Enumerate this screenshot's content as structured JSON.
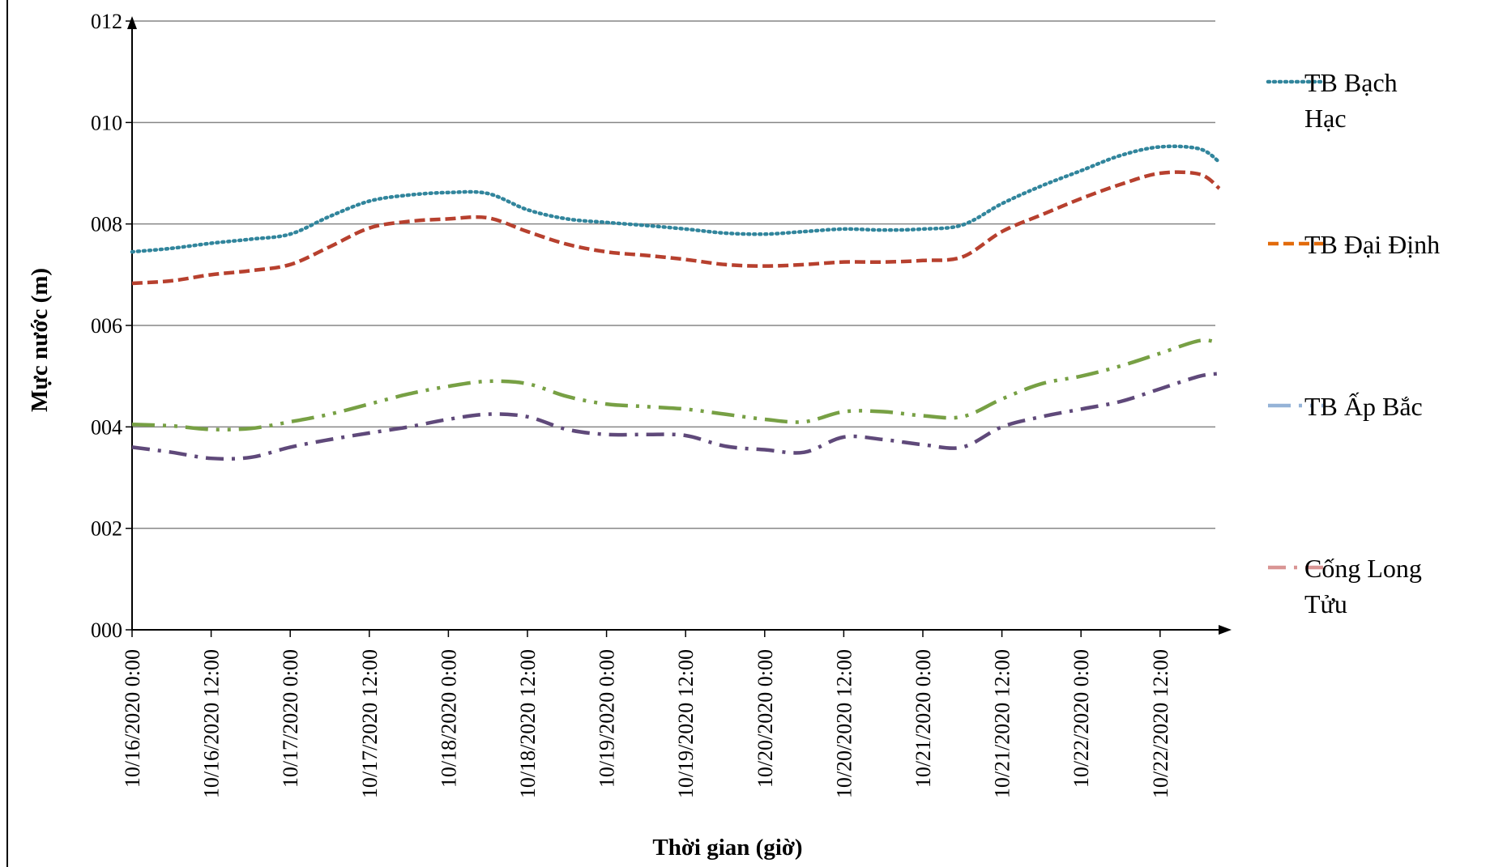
{
  "chart_data": {
    "type": "line",
    "title": "",
    "xlabel": "Thời gian (giờ)",
    "ylabel": "Mực nước (m)",
    "ylim": [
      0,
      12
    ],
    "yticks": [
      "000",
      "002",
      "004",
      "006",
      "008",
      "010",
      "012"
    ],
    "xlim": [
      "10/16/2020 0:00",
      "10/22/2020 21:00"
    ],
    "categories": [
      "10/16/2020 0:00",
      "10/16/2020 12:00",
      "10/17/2020 0:00",
      "10/17/2020 12:00",
      "10/18/2020 0:00",
      "10/18/2020 12:00",
      "10/19/2020 0:00",
      "10/19/2020 12:00",
      "10/20/2020 0:00",
      "10/20/2020 12:00",
      "10/21/2020 0:00",
      "10/21/2020 12:00",
      "10/22/2020 0:00",
      "10/22/2020 12:00"
    ],
    "grid": true,
    "legend_position": "right",
    "series": [
      {
        "name": "TB Bạch Hạc",
        "legend_color": "#31859c",
        "color": "#31859c",
        "dash": "dot",
        "x": [
          "10/16/2020 0:00",
          "10/16/2020 6:00",
          "10/16/2020 12:00",
          "10/16/2020 18:00",
          "10/17/2020 0:00",
          "10/17/2020 6:00",
          "10/17/2020 12:00",
          "10/17/2020 18:00",
          "10/18/2020 0:00",
          "10/18/2020 6:00",
          "10/18/2020 12:00",
          "10/18/2020 18:00",
          "10/19/2020 0:00",
          "10/19/2020 6:00",
          "10/19/2020 12:00",
          "10/19/2020 18:00",
          "10/20/2020 0:00",
          "10/20/2020 6:00",
          "10/20/2020 12:00",
          "10/20/2020 18:00",
          "10/21/2020 0:00",
          "10/21/2020 6:00",
          "10/21/2020 12:00",
          "10/21/2020 18:00",
          "10/22/2020 0:00",
          "10/22/2020 6:00",
          "10/22/2020 12:00",
          "10/22/2020 18:00",
          "10/22/2020 21:00"
        ],
        "values": [
          7.45,
          7.52,
          7.62,
          7.7,
          7.8,
          8.15,
          8.45,
          8.57,
          8.62,
          8.6,
          8.28,
          8.1,
          8.03,
          7.97,
          7.9,
          7.82,
          7.8,
          7.85,
          7.9,
          7.88,
          7.9,
          7.98,
          8.4,
          8.75,
          9.05,
          9.35,
          9.52,
          9.48,
          9.22
        ]
      },
      {
        "name": "TB Đại Định",
        "legend_color": "#e26b0a",
        "color": "#b7402e",
        "dash": "dash",
        "x": [
          "10/16/2020 0:00",
          "10/16/2020 6:00",
          "10/16/2020 12:00",
          "10/16/2020 18:00",
          "10/17/2020 0:00",
          "10/17/2020 6:00",
          "10/17/2020 12:00",
          "10/17/2020 18:00",
          "10/18/2020 0:00",
          "10/18/2020 6:00",
          "10/18/2020 12:00",
          "10/18/2020 18:00",
          "10/19/2020 0:00",
          "10/19/2020 6:00",
          "10/19/2020 12:00",
          "10/19/2020 18:00",
          "10/20/2020 0:00",
          "10/20/2020 6:00",
          "10/20/2020 12:00",
          "10/20/2020 18:00",
          "10/21/2020 0:00",
          "10/21/2020 6:00",
          "10/21/2020 12:00",
          "10/21/2020 18:00",
          "10/22/2020 0:00",
          "10/22/2020 6:00",
          "10/22/2020 12:00",
          "10/22/2020 18:00",
          "10/22/2020 21:00"
        ],
        "values": [
          6.83,
          6.88,
          7.0,
          7.08,
          7.2,
          7.55,
          7.92,
          8.05,
          8.1,
          8.12,
          7.85,
          7.6,
          7.45,
          7.38,
          7.3,
          7.2,
          7.17,
          7.2,
          7.25,
          7.25,
          7.28,
          7.35,
          7.85,
          8.18,
          8.5,
          8.78,
          9.0,
          8.98,
          8.7
        ]
      },
      {
        "name": "TB Ấp Bắc",
        "legend_color": "#95b3d7",
        "color": "#77a044",
        "dash": "dash-dot-dot",
        "x": [
          "10/16/2020 0:00",
          "10/16/2020 6:00",
          "10/16/2020 12:00",
          "10/16/2020 18:00",
          "10/17/2020 0:00",
          "10/17/2020 6:00",
          "10/17/2020 12:00",
          "10/17/2020 18:00",
          "10/18/2020 0:00",
          "10/18/2020 6:00",
          "10/18/2020 12:00",
          "10/18/2020 18:00",
          "10/19/2020 0:00",
          "10/19/2020 6:00",
          "10/19/2020 12:00",
          "10/19/2020 18:00",
          "10/20/2020 0:00",
          "10/20/2020 6:00",
          "10/20/2020 12:00",
          "10/20/2020 18:00",
          "10/21/2020 0:00",
          "10/21/2020 6:00",
          "10/21/2020 12:00",
          "10/21/2020 18:00",
          "10/22/2020 0:00",
          "10/22/2020 6:00",
          "10/22/2020 12:00",
          "10/22/2020 18:00",
          "10/22/2020 21:00"
        ],
        "values": [
          4.05,
          4.02,
          3.95,
          3.97,
          4.1,
          4.25,
          4.45,
          4.65,
          4.8,
          4.9,
          4.85,
          4.6,
          4.45,
          4.4,
          4.35,
          4.25,
          4.15,
          4.1,
          4.3,
          4.3,
          4.22,
          4.2,
          4.55,
          4.85,
          5.0,
          5.2,
          5.45,
          5.7,
          5.65
        ]
      },
      {
        "name": "Cống Long Tửu",
        "legend_color": "#d99594",
        "color": "#5f497a",
        "dash": "dash-dot",
        "x": [
          "10/16/2020 0:00",
          "10/16/2020 6:00",
          "10/16/2020 12:00",
          "10/16/2020 18:00",
          "10/17/2020 0:00",
          "10/17/2020 6:00",
          "10/17/2020 12:00",
          "10/17/2020 18:00",
          "10/18/2020 0:00",
          "10/18/2020 6:00",
          "10/18/2020 12:00",
          "10/18/2020 18:00",
          "10/19/2020 0:00",
          "10/19/2020 6:00",
          "10/19/2020 12:00",
          "10/19/2020 18:00",
          "10/20/2020 0:00",
          "10/20/2020 6:00",
          "10/20/2020 12:00",
          "10/20/2020 18:00",
          "10/21/2020 0:00",
          "10/21/2020 6:00",
          "10/21/2020 12:00",
          "10/21/2020 18:00",
          "10/22/2020 0:00",
          "10/22/2020 6:00",
          "10/22/2020 12:00",
          "10/22/2020 18:00",
          "10/22/2020 21:00"
        ],
        "values": [
          3.6,
          3.5,
          3.38,
          3.4,
          3.6,
          3.75,
          3.88,
          4.0,
          4.15,
          4.25,
          4.2,
          3.95,
          3.85,
          3.85,
          3.83,
          3.62,
          3.55,
          3.5,
          3.8,
          3.75,
          3.65,
          3.6,
          4.0,
          4.2,
          4.35,
          4.5,
          4.75,
          5.0,
          5.05
        ]
      }
    ]
  }
}
